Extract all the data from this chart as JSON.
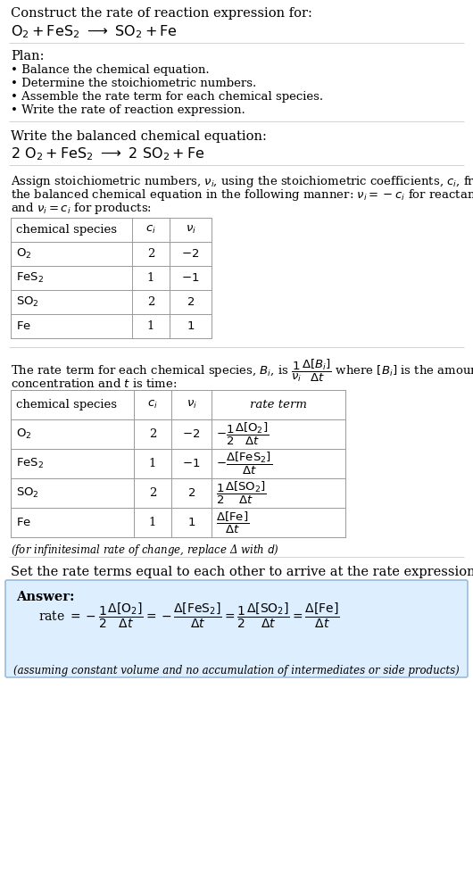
{
  "bg_color": "#ffffff",
  "text_color": "#000000",
  "font_family": "serif",
  "fs_main": 10.5,
  "fs_small": 9.5,
  "fs_tiny": 8.5,
  "line_color": "#aaaaaa",
  "answer_box_color": "#ddeeff",
  "answer_box_border": "#99bbdd",
  "sections": {
    "s1_line1": "Construct the rate of reaction expression for:",
    "plan_header": "Plan:",
    "plan_items": [
      "• Balance the chemical equation.",
      "• Determine the stoichiometric numbers.",
      "• Assemble the rate term for each chemical species.",
      "• Write the rate of reaction expression."
    ],
    "balanced_header": "Write the balanced chemical equation:",
    "stoich_intro_lines": [
      "Assign stoichiometric numbers, $\\nu_i$, using the stoichiometric coefficients, $c_i$, from",
      "the balanced chemical equation in the following manner: $\\nu_i = -c_i$ for reactants",
      "and $\\nu_i = c_i$ for products:"
    ],
    "rate_intro_line1": "The rate term for each chemical species, $B_i$, is",
    "rate_intro_line2": "concentration and $t$ is time:",
    "infinitesimal_note": "(for infinitesimal rate of change, replace Δ with $d$)",
    "set_equal_text": "Set the rate terms equal to each other to arrive at the rate expression:",
    "answer_label": "Answer:",
    "assuming_note": "(assuming constant volume and no accumulation of intermediates or side products)"
  }
}
